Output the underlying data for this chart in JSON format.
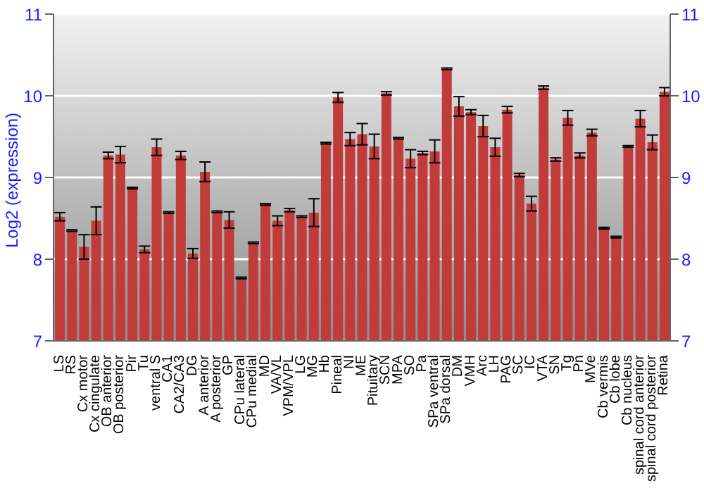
{
  "chart_data": {
    "type": "bar",
    "ylabel": "Log2 (expression)",
    "categories": [
      "LS",
      "RS",
      "Cx motor",
      "Cx cingulate",
      "OB anterior",
      "OB posterior",
      "Pir",
      "Tu",
      "ventral S",
      "CA1",
      "CA2/CA3",
      "DG",
      "A anterior",
      "A posterior",
      "GP",
      "CPu lateral",
      "CPu medial",
      "MD",
      "VA/VL",
      "VPM/VPL",
      "LG",
      "MG",
      "Hb",
      "Pineal",
      "NI",
      "ME",
      "Pituitary",
      "SCN",
      "MPA",
      "SO",
      "Pa",
      "SPa ventral",
      "SPa dorsal",
      "DM",
      "VMH",
      "Arc",
      "LH",
      "PAG",
      "SC",
      "IC",
      "VTA",
      "SN",
      "Tg",
      "Pn",
      "MVe",
      "Cb vermis",
      "Cb lobe",
      "Cb nucleus",
      "spinal cord anterior",
      "spinal cord posterior",
      "Retina"
    ],
    "values": [
      8.52,
      8.35,
      8.15,
      8.47,
      9.27,
      9.28,
      8.87,
      8.12,
      9.37,
      8.57,
      9.27,
      8.07,
      9.07,
      8.58,
      8.48,
      7.77,
      8.2,
      8.67,
      8.47,
      8.6,
      8.52,
      8.57,
      9.42,
      9.98,
      9.47,
      9.53,
      9.38,
      10.03,
      9.48,
      9.23,
      9.3,
      9.32,
      10.33,
      9.87,
      9.8,
      9.63,
      9.37,
      9.83,
      9.03,
      8.68,
      10.1,
      9.22,
      9.73,
      9.27,
      9.55,
      8.38,
      8.27,
      9.38,
      9.72,
      9.43,
      10.05
    ],
    "errors": [
      0.05,
      0.01,
      0.15,
      0.17,
      0.04,
      0.1,
      0.01,
      0.04,
      0.1,
      0.01,
      0.05,
      0.06,
      0.12,
      0.01,
      0.1,
      0.01,
      0.01,
      0.01,
      0.06,
      0.02,
      0.01,
      0.17,
      0.01,
      0.06,
      0.08,
      0.13,
      0.15,
      0.02,
      0.01,
      0.11,
      0.02,
      0.14,
      0.01,
      0.12,
      0.03,
      0.13,
      0.11,
      0.04,
      0.02,
      0.09,
      0.02,
      0.02,
      0.09,
      0.03,
      0.04,
      0.01,
      0.01,
      0.01,
      0.1,
      0.09,
      0.05
    ],
    "color": "#c23b3b",
    "ylim": [
      7,
      11
    ],
    "yticks": [
      7,
      8,
      9,
      10,
      11
    ],
    "y2lim": [
      7,
      11
    ],
    "y2ticks": [
      7,
      8,
      9,
      10,
      11
    ],
    "grid": "y"
  }
}
